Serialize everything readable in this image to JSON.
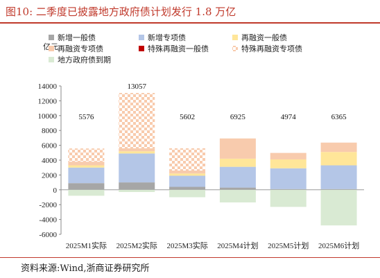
{
  "title": "图10:   二季度已披露地方政府债计划发行 1.8 万亿",
  "source": "资料来源:Wind,浙商证券研究所",
  "chart_data": {
    "type": "bar",
    "stacked": true,
    "unit_label": "亿元",
    "categories": [
      "2025M1实际",
      "2025M2实际",
      "2025M3实际",
      "2025M4计划",
      "2025M5计划",
      "2025M6计划"
    ],
    "totals": [
      5576,
      13057,
      5602,
      6925,
      4974,
      6365
    ],
    "ylim": [
      -6000,
      14000
    ],
    "yticks": [
      -6000,
      -4000,
      -2000,
      0,
      2000,
      4000,
      6000,
      8000,
      10000,
      12000,
      14000
    ],
    "grid": false,
    "legend_position": "top",
    "series": [
      {
        "name": "新增一般债",
        "color": "#a6a6a6",
        "pattern": "solid",
        "values": [
          900,
          1000,
          400,
          300,
          100,
          100
        ]
      },
      {
        "name": "新增专项债",
        "color": "#b4c6e7",
        "pattern": "solid",
        "values": [
          2100,
          3900,
          1500,
          2800,
          2800,
          3200
        ]
      },
      {
        "name": "再融资一般债",
        "color": "#ffe699",
        "pattern": "solid",
        "values": [
          300,
          300,
          300,
          1100,
          1200,
          1800
        ]
      },
      {
        "name": "再融资专项债",
        "color": "#f8cbad",
        "pattern": "solid",
        "values": [
          500,
          400,
          400,
          2725,
          874,
          1265
        ]
      },
      {
        "name": "特殊再融资一般债",
        "color": "#c00000",
        "pattern": "solid",
        "values": [
          0,
          0,
          0,
          0,
          0,
          0
        ]
      },
      {
        "name": "特殊再融资专项债",
        "color": "#f4b183",
        "pattern": "checker",
        "values": [
          1776,
          7457,
          3002,
          0,
          0,
          0
        ]
      },
      {
        "name": "地方政府债到期",
        "color": "#d9ead3",
        "pattern": "solid",
        "values": [
          -800,
          -300,
          -1000,
          -1700,
          -2300,
          -4800
        ]
      }
    ]
  }
}
